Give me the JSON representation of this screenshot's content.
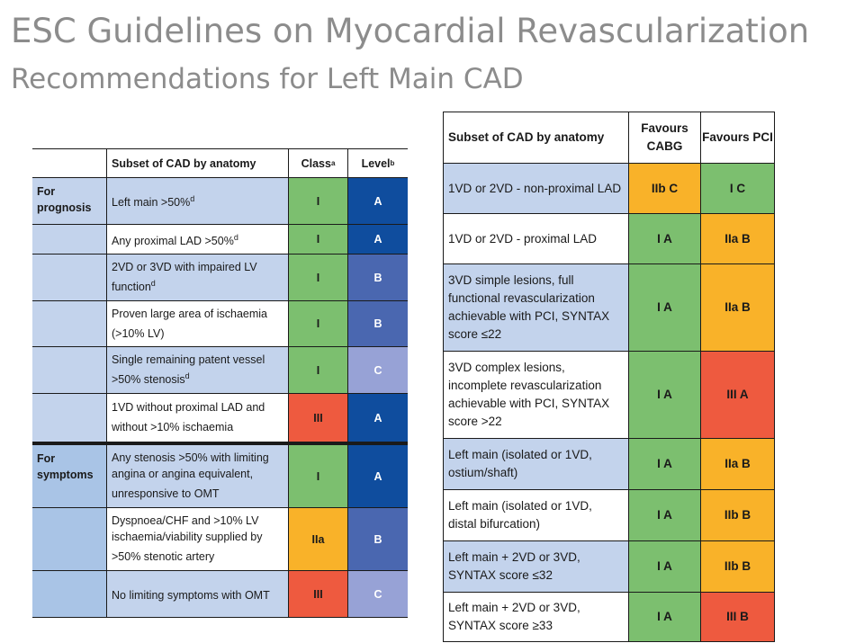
{
  "slide": {
    "title": "ESC Guidelines on Myocardial Revascularization",
    "subtitle": "Recommendations for Left Main CAD"
  },
  "colors": {
    "light_blue": "#c3d3ec",
    "green": "#7cbf6f",
    "orange": "#f9b229",
    "red": "#ee5a3f",
    "dark_blue": "#0f4d9e",
    "medium_blue": "#4a67b0",
    "pale_blue": "#97a2d6"
  },
  "left_table": {
    "headers": {
      "subset": "Subset of CAD by anatomy",
      "class": "Class",
      "class_sup": "a",
      "level": "Level",
      "level_sup": "b"
    },
    "sections": [
      {
        "label": "For prognosis",
        "rows": [
          {
            "text": "Left main >50%",
            "sup": "d",
            "class": "I",
            "level": "A"
          },
          {
            "text": "Any proximal LAD >50%",
            "sup": "d",
            "class": "I",
            "level": "A"
          },
          {
            "text": "2VD or 3VD with impaired LV function",
            "sup": "d",
            "class": "I",
            "level": "B"
          },
          {
            "text": "Proven large area of ischaemia (>10% LV)",
            "sup": "",
            "class": "I",
            "level": "B"
          },
          {
            "text": "Single remaining patent vessel >50% stenosis",
            "sup": "d",
            "class": "I",
            "level": "C"
          },
          {
            "text": "1VD without proximal LAD and without >10% ischaemia",
            "sup": "",
            "class": "III",
            "level": "A"
          }
        ]
      },
      {
        "label": "For symptoms",
        "rows": [
          {
            "text": "Any stenosis >50% with limiting angina or angina equivalent, unresponsive to OMT",
            "sup": "",
            "class": "I",
            "level": "A"
          },
          {
            "text": "Dyspnoea/CHF and >10% LV ischaemia/viability supplied by >50% stenotic artery",
            "sup": "",
            "class": "IIa",
            "level": "B"
          },
          {
            "text": "No limiting symptoms with OMT",
            "sup": "",
            "class": "III",
            "level": "C"
          }
        ]
      }
    ]
  },
  "right_table": {
    "headers": {
      "subset": "Subset of CAD by anatomy",
      "cabg": "Favours CABG",
      "pci": "Favours PCI"
    },
    "rows": [
      {
        "text": "1VD or 2VD - non-proximal LAD",
        "cabg": "IIb C",
        "pci": "I C"
      },
      {
        "text": "1VD or 2VD - proximal LAD",
        "cabg": "I A",
        "pci": "IIa B"
      },
      {
        "text": "3VD simple lesions, full functional revascularization achievable with PCI, SYNTAX score ≤22",
        "cabg": "I A",
        "pci": "IIa B"
      },
      {
        "text": "3VD complex lesions, incomplete revascularization achievable with PCI, SYNTAX score >22",
        "cabg": "I A",
        "pci": "III A"
      },
      {
        "text": "Left main (isolated or 1VD, ostium/shaft)",
        "cabg": "I A",
        "pci": "IIa B"
      },
      {
        "text": "Left main (isolated or 1VD, distal bifurcation)",
        "cabg": "I A",
        "pci": "IIb B"
      },
      {
        "text": "Left main + 2VD or 3VD, SYNTAX score ≤32",
        "cabg": "I A",
        "pci": "IIb B"
      },
      {
        "text": "Left main + 2VD or 3VD, SYNTAX score ≥33",
        "cabg": "I A",
        "pci": "III B"
      }
    ]
  }
}
